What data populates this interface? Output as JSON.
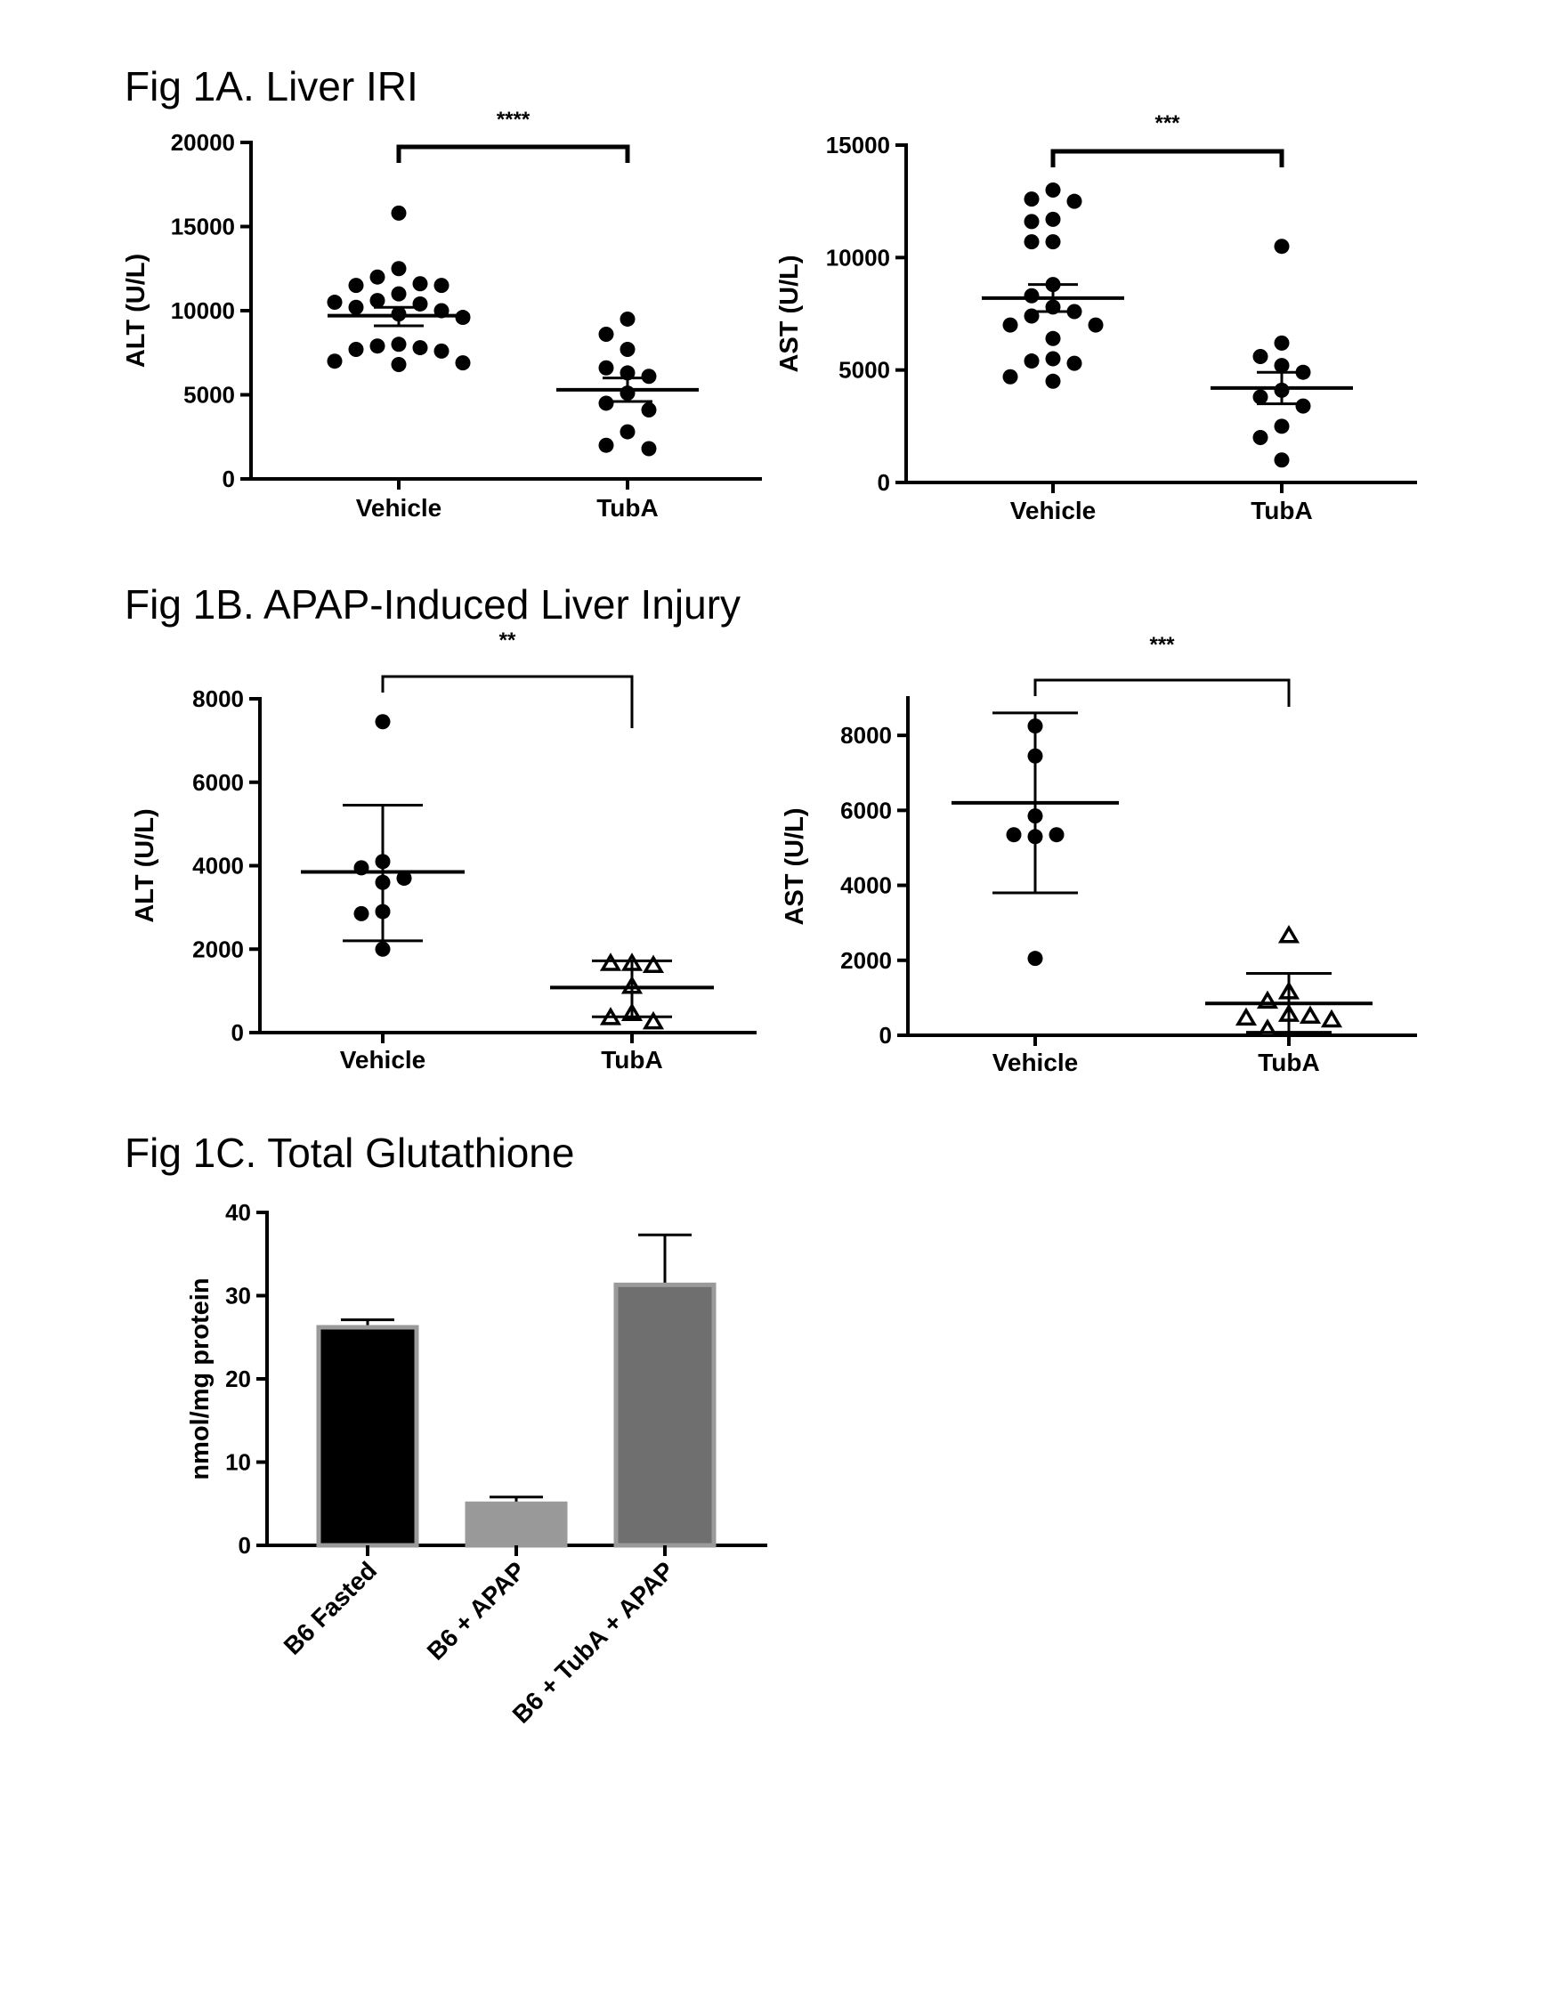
{
  "sections": {
    "fig1a_title": "Fig 1A. Liver IRI",
    "fig1b_title": "Fig 1B. APAP-Induced Liver Injury",
    "fig1c_title": "Fig 1C. Total Glutathione"
  },
  "chart_data": [
    {
      "id": "fig1a_alt",
      "type": "scatter",
      "ylabel": "ALT (U/L)",
      "ylim": [
        0,
        20000
      ],
      "yticks": [
        0,
        5000,
        10000,
        15000,
        20000
      ],
      "categories": [
        "Vehicle",
        "TubA"
      ],
      "marker": "filled-circle",
      "significance": "****",
      "groups": [
        {
          "category": "Vehicle",
          "mean": 9700,
          "sem_low": 9100,
          "sem_high": 10200,
          "points": [
            15800,
            12500,
            12000,
            11600,
            11500,
            11500,
            11000,
            10600,
            10500,
            10400,
            10200,
            10000,
            9800,
            9600,
            8000,
            7900,
            7800,
            7700,
            7600,
            7000,
            6900,
            6800
          ]
        },
        {
          "category": "TubA",
          "mean": 5300,
          "sem_low": 4600,
          "sem_high": 6000,
          "points": [
            9500,
            8600,
            7700,
            6600,
            6300,
            6100,
            5100,
            4500,
            4100,
            2800,
            2000,
            1800
          ]
        }
      ]
    },
    {
      "id": "fig1a_ast",
      "type": "scatter",
      "ylabel": "AST (U/L)",
      "ylim": [
        0,
        15000
      ],
      "yticks": [
        0,
        5000,
        10000,
        15000
      ],
      "categories": [
        "Vehicle",
        "TubA"
      ],
      "marker": "filled-circle",
      "significance": "***",
      "groups": [
        {
          "category": "Vehicle",
          "mean": 8200,
          "sem_low": 7600,
          "sem_high": 8800,
          "points": [
            13000,
            12600,
            12500,
            11700,
            11600,
            10700,
            10700,
            8800,
            8300,
            7800,
            7600,
            7400,
            7000,
            7000,
            6400,
            5500,
            5400,
            5300,
            4700,
            4500
          ]
        },
        {
          "category": "TubA",
          "mean": 4200,
          "sem_low": 3500,
          "sem_high": 4900,
          "points": [
            10500,
            6200,
            5600,
            5200,
            4900,
            4100,
            3800,
            3400,
            2500,
            2000,
            1000
          ]
        }
      ]
    },
    {
      "id": "fig1b_alt",
      "type": "scatter",
      "ylabel": "ALT (U/L)",
      "ylim": [
        0,
        8000
      ],
      "yticks": [
        0,
        2000,
        4000,
        6000,
        8000
      ],
      "categories": [
        "Vehicle",
        "TubA"
      ],
      "significance": "**",
      "groups": [
        {
          "category": "Vehicle",
          "marker": "filled-circle",
          "mean": 3850,
          "sd_low": 2200,
          "sd_high": 5450,
          "points": [
            7450,
            4100,
            3950,
            3700,
            3600,
            2900,
            2850,
            2000
          ]
        },
        {
          "category": "TubA",
          "marker": "open-triangle",
          "mean": 1080,
          "sd_low": 380,
          "sd_high": 1720,
          "points": [
            1650,
            1650,
            1600,
            1100,
            450,
            350,
            250
          ]
        }
      ]
    },
    {
      "id": "fig1b_ast",
      "type": "scatter",
      "ylabel": "AST (U/L)",
      "ylim": [
        0,
        9000
      ],
      "yticks": [
        0,
        2000,
        4000,
        6000,
        8000
      ],
      "categories": [
        "Vehicle",
        "TubA"
      ],
      "significance": "***",
      "groups": [
        {
          "category": "Vehicle",
          "marker": "filled-circle",
          "mean": 6200,
          "sd_low": 3800,
          "sd_high": 8600,
          "points": [
            8250,
            7450,
            5850,
            5350,
            5350,
            5300,
            2050
          ]
        },
        {
          "category": "TubA",
          "marker": "open-triangle",
          "mean": 850,
          "sd_low": 80,
          "sd_high": 1650,
          "points": [
            2650,
            1150,
            900,
            550,
            500,
            450,
            400,
            150
          ]
        }
      ]
    },
    {
      "id": "fig1c_gsh",
      "type": "bar",
      "ylabel": "nmol/mg protein",
      "ylim": [
        0,
        40
      ],
      "yticks": [
        0,
        10,
        20,
        30,
        40
      ],
      "categories": [
        "B6 Fasted",
        "B6 + APAP",
        "B6 + TubA + APAP"
      ],
      "values": [
        26.2,
        5.0,
        31.3
      ],
      "errors": [
        0.9,
        0.8,
        6.0
      ],
      "colors": [
        "#000000",
        "#999999",
        "#6f6f6f"
      ]
    }
  ]
}
